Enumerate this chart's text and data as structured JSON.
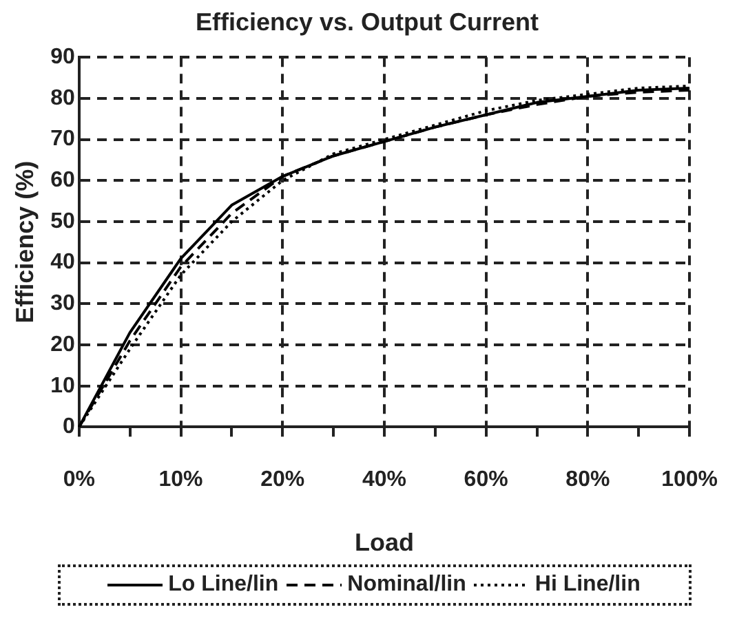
{
  "chart_data": {
    "type": "line",
    "title": "Efficiency vs. Output Current",
    "xlabel": "Load",
    "ylabel": "Efficiency (%)",
    "categories": [
      "0%",
      null,
      "10%",
      null,
      "20%",
      null,
      "40%",
      null,
      "60%",
      null,
      "80%",
      null,
      "100%"
    ],
    "series": [
      {
        "name": "Lo Line/lin",
        "color": "#000000",
        "line_style": "solid",
        "values": [
          0,
          23,
          41,
          54,
          61,
          66,
          69.5,
          73,
          76,
          79,
          80.5,
          82,
          82.5
        ]
      },
      {
        "name": "Nominal/lin",
        "color": "#000000",
        "line_style": "dashed",
        "values": [
          0,
          21,
          39,
          52,
          61,
          66,
          69.5,
          73,
          76,
          78.5,
          80.5,
          81.5,
          82
        ]
      },
      {
        "name": "Hi Line/lin",
        "color": "#000000",
        "line_style": "dotted",
        "values": [
          0,
          19,
          37,
          50,
          60,
          66.5,
          70,
          73.5,
          77,
          79.5,
          81,
          82.5,
          83
        ]
      }
    ],
    "ylim": [
      0,
      90
    ],
    "yticks": [
      0,
      10,
      20,
      30,
      40,
      50,
      60,
      70,
      80,
      90
    ],
    "grid": true,
    "legend": "bottom",
    "marker": "none"
  }
}
